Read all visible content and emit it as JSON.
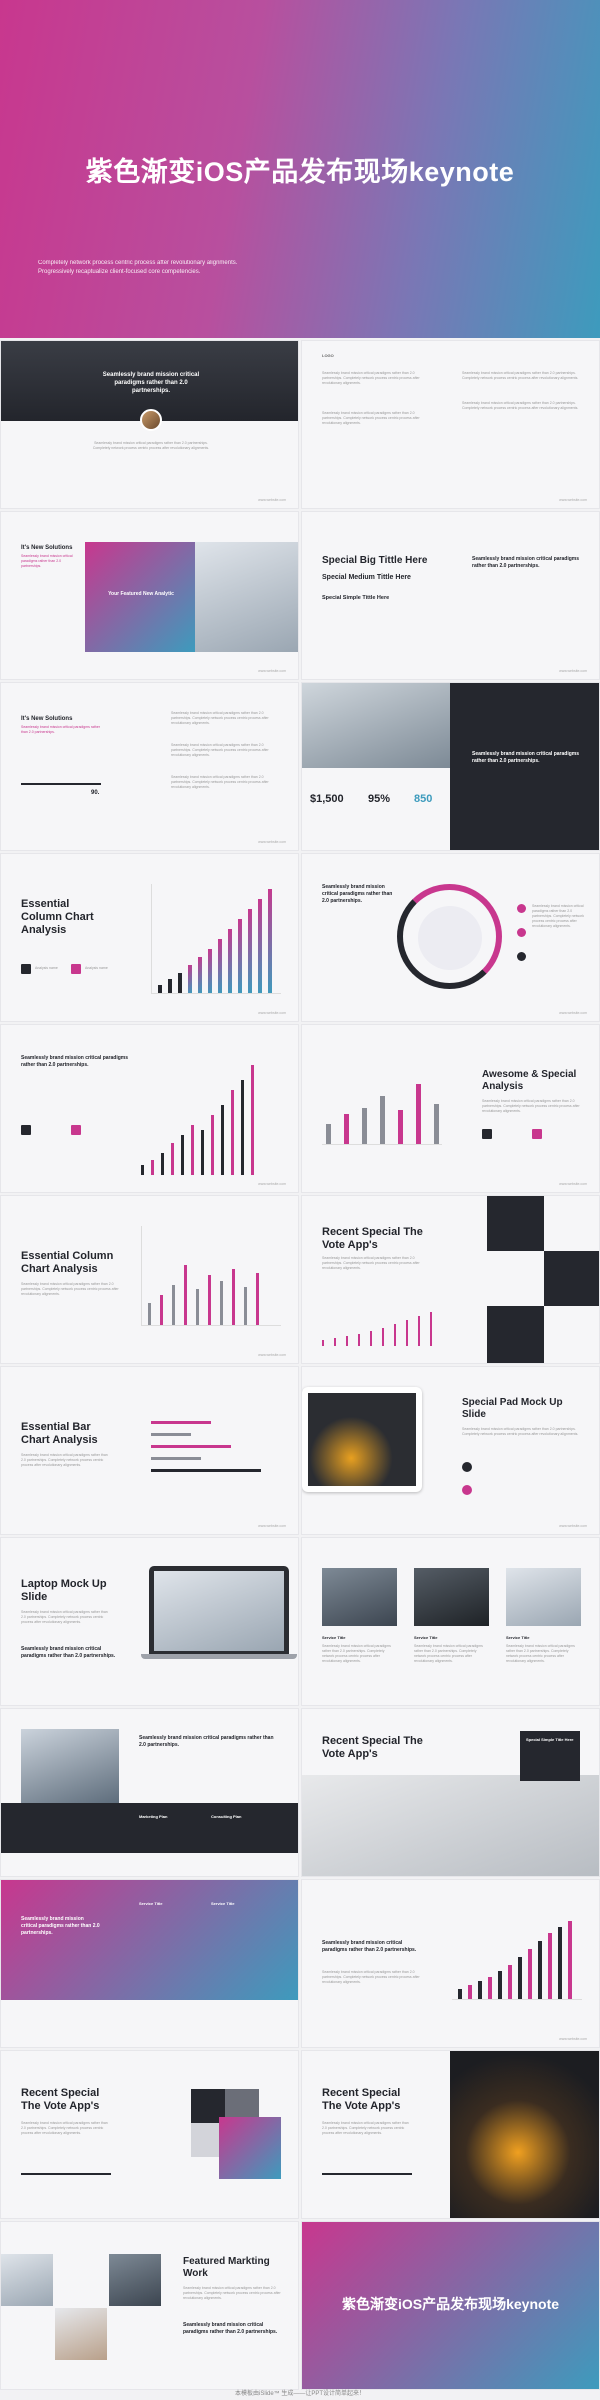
{
  "cover": {
    "title": "紫色渐变iOS产品发布现场keynote",
    "subtitle_line1": "Completely network process centric process after revolutionary alignments.",
    "subtitle_line2": "Progressively recaptualize client-focused core competencies."
  },
  "common": {
    "logo": "LOGO",
    "page_no": "01",
    "footer": "www.website.com",
    "body_text": "Seamlessly brand mission critical paradigms rather than 2.0 partnerships. Completely network process centric process after revolutionary alignments."
  },
  "slides": {
    "s1": {
      "headline": "Seamlessly brand mission critical paradigms rather than 2.0 partnerships."
    },
    "s3": {
      "title": "It's New Solutions",
      "sub": "Seamlessly brand mission critical paradigms rather than 2.0 partnerships.",
      "overlay": "Your Featured New Analytic"
    },
    "s4": {
      "t1": "Special Big Tittle Here",
      "t2": "Special Medium Tittle Here",
      "t3": "Special Simple Tittle Here",
      "side": "Seamlessly brand mission critical paradigms rather than 2.0 partnerships."
    },
    "s5": {
      "title": "It's New Solutions",
      "sub": "Seamlessly brand mission critical paradigms rather than 2.0 partnerships.",
      "value": "90."
    },
    "s6": {
      "stat1": "$1,500",
      "stat2": "95%",
      "stat3": "850",
      "panel": "Seamlessly brand mission critical paradigms rather than 2.0 partnerships."
    },
    "s7": {
      "title": "Essential Column Chart Analysis",
      "legend1": "Analysis name",
      "legend2": "Analysis name"
    },
    "s8": {
      "headline": "Seamlessly brand mission critical paradigms rather than 2.0 partnerships."
    },
    "s9": {
      "headline": "Seamlessly brand mission critical paradigms rather than 2.0 partnerships."
    },
    "s10": {
      "title": "Awesome & Special Analysis"
    },
    "s11": {
      "title": "Essential Column Chart Analysis"
    },
    "s12": {
      "title": "Recent Special The Vote App's"
    },
    "s13": {
      "title": "Essential Bar Chart Analysis"
    },
    "s14": {
      "title": "Special Pad Mock Up Slide"
    },
    "s15": {
      "title": "Laptop Mock Up Slide",
      "sub": "Seamlessly brand mission critical paradigms rather than 2.0 partnerships."
    },
    "s16": {
      "a": "Service Title",
      "b": "Service Title",
      "c": "Service Title"
    },
    "s17": {
      "headline": "Seamlessly brand mission critical paradigms rather than 2.0 partnerships.",
      "a": "Marketing Plan",
      "b": "Consulting Plan"
    },
    "s18": {
      "title": "Recent Special The Vote App's",
      "badge": "Special Simple Title Here"
    },
    "s19": {
      "headline": "Seamlessly brand mission critical paradigms rather than 2.0 partnerships.",
      "a": "Service Title",
      "b": "Service Title"
    },
    "s20": {
      "headline": "Seamlessly brand mission critical paradigms rather than 2.0 partnerships."
    },
    "s21": {
      "title": "Recent Special The Vote App's"
    },
    "s22": {
      "title": "Recent Special The Vote App's"
    },
    "s23": {
      "title": "Featured Markting Work",
      "sub": "Seamlessly brand mission critical paradigms rather than 2.0 partnerships."
    },
    "s24": {
      "title": "紫色渐变iOS产品发布现场keynote"
    }
  },
  "bottom_note": "本模板由iSlide™ 生成——让PPT设计简单起来！",
  "colors": {
    "magenta": "#c8378e",
    "teal": "#3d9bbd",
    "dark": "#25272e"
  }
}
